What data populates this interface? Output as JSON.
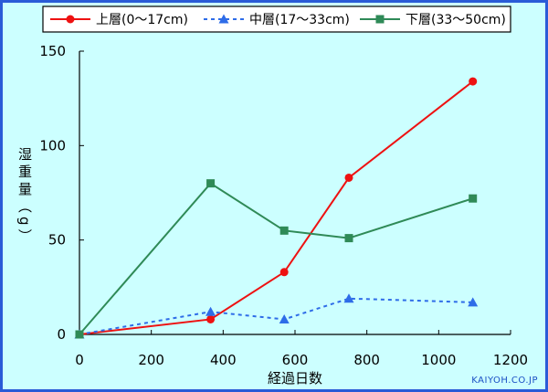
{
  "chart_data": {
    "type": "line",
    "title": "",
    "xlabel": "経過日数",
    "ylabel": "湿重量（g）",
    "xlim": [
      0,
      1200
    ],
    "ylim": [
      0,
      150
    ],
    "xticks": [
      0,
      200,
      400,
      600,
      800,
      1000,
      1200
    ],
    "yticks": [
      0,
      50,
      100,
      150
    ],
    "grid": false,
    "legend_position": "top",
    "series": [
      {
        "name": "上層(0～17cm)",
        "color": "#ee1111",
        "marker": "circle",
        "line": "solid",
        "x": [
          0,
          365,
          570,
          750,
          1095
        ],
        "y": [
          0,
          8,
          33,
          83,
          134
        ]
      },
      {
        "name": "中層(17～33cm)",
        "color": "#2e6ce8",
        "marker": "triangle",
        "line": "dotted",
        "x": [
          0,
          365,
          570,
          750,
          1095
        ],
        "y": [
          0,
          12,
          8,
          19,
          17
        ]
      },
      {
        "name": "下層(33～50cm)",
        "color": "#2f8a57",
        "marker": "square",
        "line": "solid",
        "x": [
          0,
          365,
          570,
          750,
          1095
        ],
        "y": [
          0,
          80,
          55,
          51,
          72
        ]
      }
    ]
  },
  "credit": "KAIYOH.CO.JP"
}
